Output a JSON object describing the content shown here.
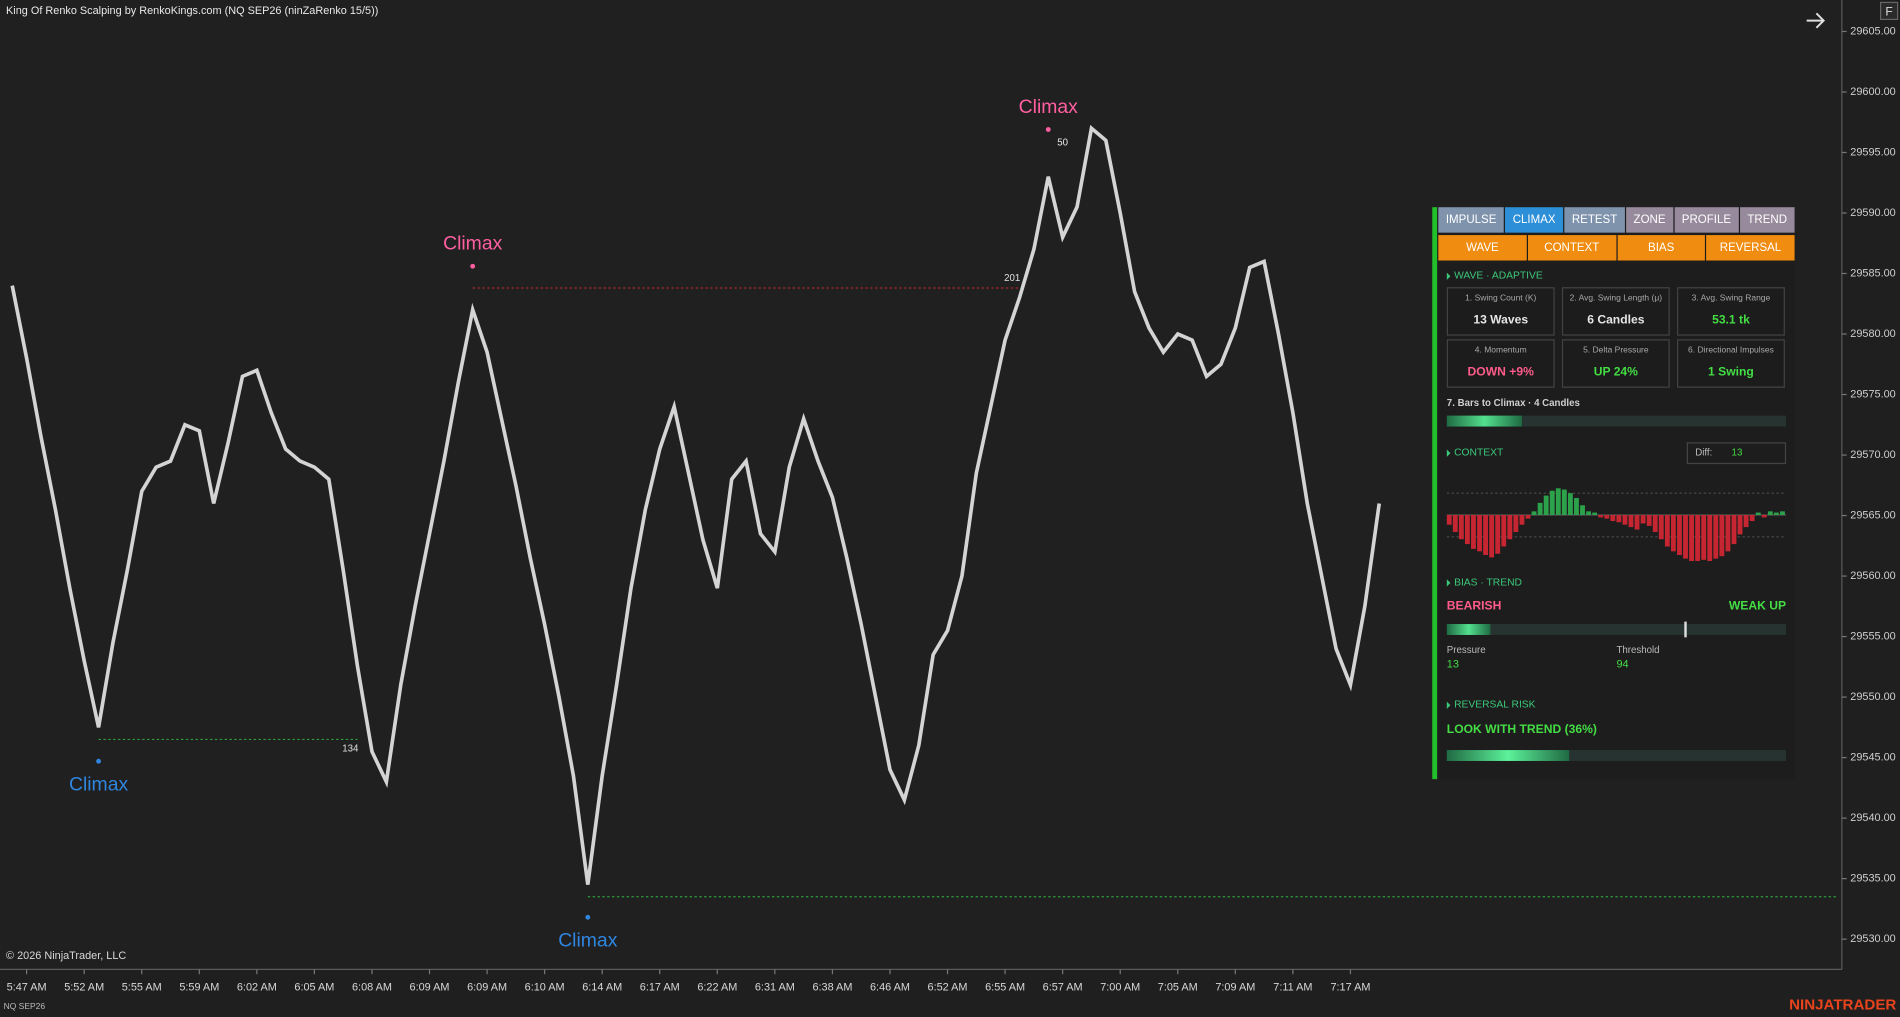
{
  "header": {
    "title": "King Of Renko Scalping by RenkoKings.com (NQ SEP26 (ninZaRenko 15/5))",
    "button": "F"
  },
  "chart_data": {
    "type": "line",
    "color": "#d4d4d4",
    "categories": [
      null,
      "5:47 AM",
      null,
      null,
      null,
      "5:52 AM",
      null,
      null,
      null,
      "5:55 AM",
      null,
      null,
      null,
      "5:59 AM",
      null,
      null,
      null,
      "6:02 AM",
      null,
      null,
      null,
      "6:05 AM",
      null,
      null,
      null,
      "6:08 AM",
      null,
      null,
      null,
      "6:09 AM",
      null,
      null,
      null,
      "6:09 AM",
      null,
      null,
      null,
      "6:10 AM",
      null,
      null,
      null,
      "6:14 AM",
      null,
      null,
      null,
      "6:17 AM",
      null,
      null,
      null,
      "6:22 AM",
      null,
      null,
      null,
      "6:31 AM",
      null,
      null,
      null,
      "6:38 AM",
      null,
      null,
      null,
      "6:46 AM",
      null,
      null,
      null,
      "6:52 AM",
      null,
      null,
      null,
      "6:55 AM",
      null,
      null,
      null,
      "6:57 AM",
      null,
      null,
      null,
      "7:00 AM",
      null,
      null,
      null,
      "7:05 AM",
      null,
      null,
      null,
      "7:09 AM",
      null,
      null,
      null,
      "7:11 AM",
      null,
      null,
      null,
      "7:17 AM",
      null,
      null
    ],
    "values": [
      29584,
      29578,
      29571.5,
      29565.5,
      29559,
      29553,
      29547.5,
      29554.5,
      29560.5,
      29567,
      29569,
      29569.5,
      29572.5,
      29572,
      29566,
      29571,
      29576.5,
      29577,
      29573.5,
      29570.5,
      29569.5,
      29569,
      29568,
      29560.5,
      29552.5,
      29545.5,
      29543,
      29551,
      29557.5,
      29563.5,
      29569.5,
      29576,
      29582,
      29578.5,
      29573,
      29567.5,
      29561.5,
      29556,
      29550,
      29543.5,
      29534.5,
      29543.5,
      29551,
      29559,
      29565.5,
      29570.5,
      29574,
      29568.5,
      29563,
      29559,
      29568,
      29569.5,
      29563.5,
      29562,
      29569,
      29573,
      29569.5,
      29566.5,
      29561.5,
      29556,
      29550,
      29544,
      29541.5,
      29546,
      29553.5,
      29555.5,
      29560,
      29568.5,
      29574,
      29579.5,
      29583,
      29587,
      29593,
      29588,
      29590.5,
      29597,
      29596,
      29590,
      29583.5,
      29580.5,
      29578.5,
      29580,
      29579.5,
      29576.5,
      29577.5,
      29580.5,
      29585.5,
      29586,
      29580,
      29573.5,
      29566,
      29560,
      29554,
      29551,
      29557.5,
      29566
    ],
    "ylim": [
      29527.5,
      29607.6
    ],
    "yticks": [
      {
        "value": 29530,
        "label": "29530.00"
      },
      {
        "value": 29535,
        "label": "29535.00"
      },
      {
        "value": 29540,
        "label": "29540.00"
      },
      {
        "value": 29545,
        "label": "29545.00"
      },
      {
        "value": 29550,
        "label": "29550.00"
      },
      {
        "value": 29555,
        "label": "29555.00"
      },
      {
        "value": 29560,
        "label": "29560.00"
      },
      {
        "value": 29565,
        "label": "29565.00"
      },
      {
        "value": 29570,
        "label": "29570.00"
      },
      {
        "value": 29575,
        "label": "29575.00"
      },
      {
        "value": 29580,
        "label": "29580.00"
      },
      {
        "value": 29585,
        "label": "29585.00"
      },
      {
        "value": 29590,
        "label": "29590.00"
      },
      {
        "value": 29595,
        "label": "29595.00"
      },
      {
        "value": 29600,
        "label": "29600.00"
      },
      {
        "value": 29605,
        "label": "29605.00"
      }
    ],
    "annotations": [
      {
        "text": "Climax",
        "index": 6,
        "price": 29544.7,
        "color": "#2f86e0",
        "side": "below"
      },
      {
        "text": "Climax",
        "index": 32,
        "price": 29585.6,
        "color": "#ff5fa0",
        "side": "above"
      },
      {
        "text": "Climax",
        "index": 40,
        "price": 29531.8,
        "color": "#2f86e0",
        "side": "below"
      },
      {
        "text": "Climax",
        "index": 72,
        "price": 29596.9,
        "color": "#ff5fa0",
        "side": "above"
      }
    ],
    "levels": [
      {
        "price": 29546.5,
        "from": 6,
        "to": 24,
        "color": "#2e9a3c",
        "label": "134"
      },
      {
        "price": 29583.8,
        "from": 32,
        "to": 70,
        "color": "#a8262e",
        "label": "201"
      },
      {
        "price": 29533.5,
        "from": 40,
        "color": "#2e9a3c"
      }
    ],
    "notes": [
      {
        "text": "50",
        "index": 73,
        "price": 29595.8
      }
    ]
  },
  "panel": {
    "tabs": [
      {
        "label": "IMPULSE",
        "color": "#7f93ad"
      },
      {
        "label": "CLIMAX",
        "color": "#2d8fd8"
      },
      {
        "label": "RETEST",
        "color": "#7f93ad"
      },
      {
        "label": "ZONE",
        "color": "#968a9c"
      },
      {
        "label": "PROFILE",
        "color": "#968a9c"
      },
      {
        "label": "TREND",
        "color": "#968a9c"
      }
    ],
    "subtabs": [
      "WAVE",
      "CONTEXT",
      "BIAS",
      "REVERSAL"
    ],
    "wave": {
      "heading": "WAVE · ADAPTIVE",
      "cards": [
        {
          "title": "1. Swing Count (K)",
          "value": "13 Waves",
          "color": "#e6e6e6"
        },
        {
          "title": "2. Avg. Swing Length (μ)",
          "value": "6 Candles",
          "color": "#e6e6e6"
        },
        {
          "title": "3. Avg. Swing Range",
          "value": "53.1 tk",
          "color": "#44dd44"
        },
        {
          "title": "4. Momentum",
          "value": "DOWN +9%",
          "color": "#ff5c8a"
        },
        {
          "title": "5. Delta Pressure",
          "value": "UP 24%",
          "color": "#44dd44"
        },
        {
          "title": "6. Directional Impulses",
          "value": "1 Swing",
          "color": "#44dd44"
        }
      ],
      "bars_label": "7. Bars to Climax · 4 Candles",
      "bars_progress": 22
    },
    "context": {
      "heading": "CONTEXT",
      "diff_label": "Diff:",
      "diff": 13,
      "histogram": [
        -8,
        -14,
        -20,
        -24,
        -28,
        -30,
        -33,
        -35,
        -32,
        -26,
        -20,
        -14,
        -8,
        -3,
        3,
        10,
        16,
        20,
        22,
        21,
        18,
        14,
        8,
        3,
        2,
        -2,
        -3,
        -5,
        -6,
        -8,
        -10,
        -12,
        -7,
        -9,
        -14,
        -20,
        -26,
        -30,
        -33,
        -36,
        -38,
        -38,
        -37,
        -38,
        -36,
        -34,
        -30,
        -24,
        -16,
        -10,
        -5,
        2,
        -2,
        3,
        2,
        3
      ]
    },
    "bias": {
      "heading": "BIAS · TREND",
      "state": "BEARISH",
      "trend": "WEAK UP",
      "pressure_label": "Pressure",
      "pressure": 13,
      "threshold_label": "Threshold",
      "threshold": 94,
      "marker": 70
    },
    "reversal": {
      "heading": "REVERSAL RISK",
      "label": "LOOK WITH TREND (36%)",
      "risk": 36
    }
  },
  "footer": {
    "copyright": "© 2026 NinjaTrader, LLC",
    "instrument": "NQ SEP26",
    "logo": "NINJATRADER"
  }
}
